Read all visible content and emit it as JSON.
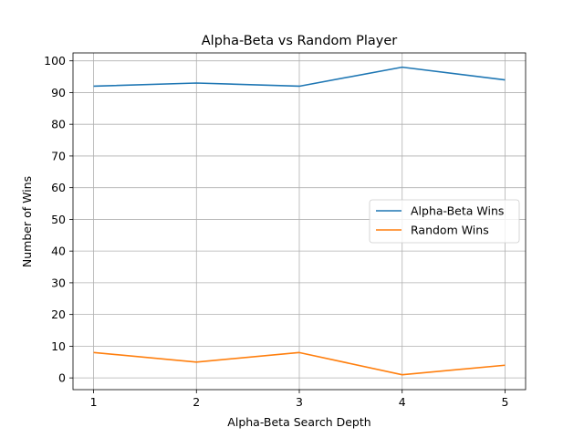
{
  "chart_data": {
    "type": "line",
    "title": "Alpha-Beta vs Random Player",
    "xlabel": "Alpha-Beta Search Depth",
    "ylabel": "Number of Wins",
    "x": [
      1,
      2,
      3,
      4,
      5
    ],
    "xlim": [
      0.8,
      5.2
    ],
    "ylim": [
      -3.7,
      102.5
    ],
    "xticks": [
      "1",
      "2",
      "3",
      "4",
      "5"
    ],
    "yticks": [
      "0",
      "10",
      "20",
      "30",
      "40",
      "50",
      "60",
      "70",
      "80",
      "90",
      "100"
    ],
    "grid": true,
    "legend_position": "center-right",
    "series": [
      {
        "name": "Alpha-Beta Wins",
        "values": [
          92,
          93,
          92,
          98,
          94
        ],
        "color": "#1f77b4"
      },
      {
        "name": "Random Wins",
        "values": [
          8,
          5,
          8,
          1,
          4
        ],
        "color": "#ff7f0e"
      }
    ]
  }
}
